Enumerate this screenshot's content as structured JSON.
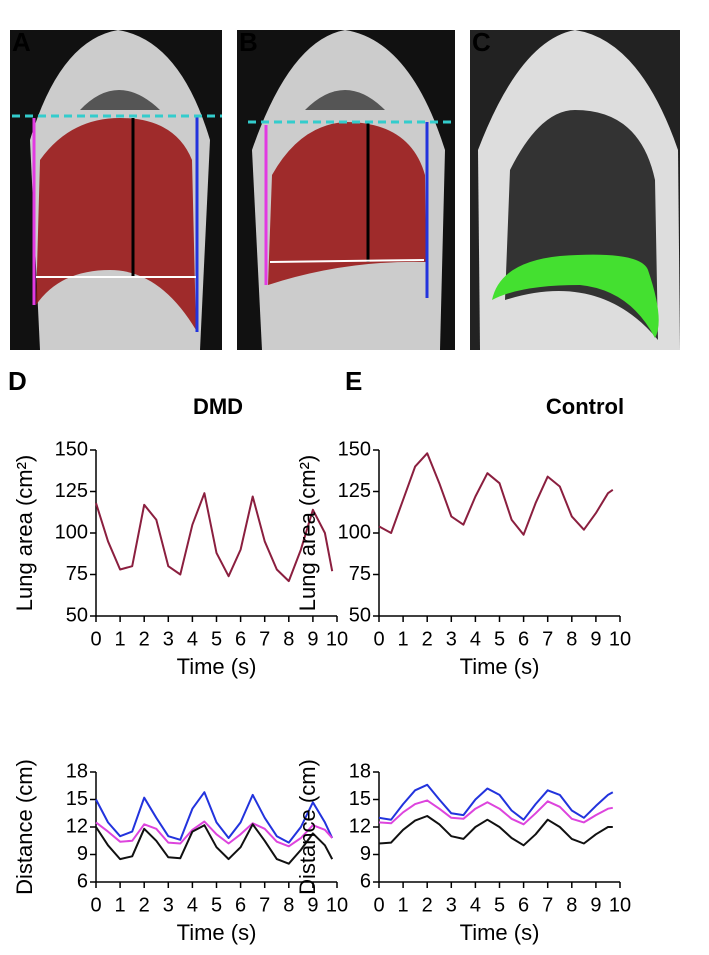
{
  "image_panels": [
    {
      "label": "A"
    },
    {
      "label": "B"
    },
    {
      "label": "C"
    }
  ],
  "chart_data": [
    {
      "type": "line",
      "panel": "D",
      "title": "DMD",
      "xlabel": "Time (s)",
      "ylabel": "Lung area (cm²)",
      "x": [
        0,
        0.5,
        1,
        1.5,
        2,
        2.5,
        3,
        3.5,
        4,
        4.5,
        5,
        5.5,
        6,
        6.5,
        7,
        7.5,
        8,
        8.5,
        9,
        9.5,
        9.8
      ],
      "series": [
        {
          "color": "#8b1f3f",
          "values": [
            118,
            95,
            78,
            80,
            117,
            108,
            80,
            75,
            105,
            124,
            88,
            74,
            90,
            122,
            95,
            78,
            71,
            90,
            114,
            100,
            77
          ]
        }
      ],
      "xlim": [
        0,
        10
      ],
      "xticks": [
        0,
        1,
        2,
        3,
        4,
        5,
        6,
        7,
        8,
        9,
        10
      ],
      "ylim": [
        50,
        150
      ],
      "yticks": [
        50,
        75,
        100,
        125,
        150
      ]
    },
    {
      "type": "line",
      "panel": "E",
      "title": "Control",
      "xlabel": "Time (s)",
      "ylabel": "Lung area (cm²)",
      "x": [
        0,
        0.5,
        1,
        1.5,
        2,
        2.5,
        3,
        3.5,
        4,
        4.5,
        5,
        5.5,
        6,
        6.5,
        7,
        7.5,
        8,
        8.5,
        9,
        9.5,
        9.7
      ],
      "series": [
        {
          "color": "#8b1f3f",
          "values": [
            104,
            100,
            120,
            140,
            148,
            130,
            110,
            105,
            122,
            136,
            130,
            108,
            99,
            118,
            134,
            128,
            110,
            102,
            112,
            124,
            126
          ]
        }
      ],
      "xlim": [
        0,
        10
      ],
      "xticks": [
        0,
        1,
        2,
        3,
        4,
        5,
        6,
        7,
        8,
        9,
        10
      ],
      "ylim": [
        50,
        150
      ],
      "yticks": [
        50,
        75,
        100,
        125,
        150
      ]
    },
    {
      "type": "line",
      "xlabel": "Time (s)",
      "ylabel": "Distance  (cm)",
      "x": [
        0,
        0.5,
        1,
        1.5,
        2,
        2.5,
        3,
        3.5,
        4,
        4.5,
        5,
        5.5,
        6,
        6.5,
        7,
        7.5,
        8,
        8.5,
        9,
        9.5,
        9.8
      ],
      "series": [
        {
          "color": "#2233dd",
          "values": [
            15,
            12.5,
            11,
            11.5,
            15.2,
            13,
            11,
            10.6,
            14,
            15.8,
            12.5,
            10.8,
            12.5,
            15.5,
            13,
            11,
            10.3,
            12,
            14.7,
            12.5,
            10.8
          ]
        },
        {
          "color": "#dd44dd",
          "values": [
            12.5,
            11.5,
            10.4,
            10.5,
            12.3,
            11.8,
            10.3,
            10.2,
            11.7,
            12.6,
            11.2,
            10.2,
            11.2,
            12.4,
            11.8,
            10.4,
            9.9,
            10.8,
            12.2,
            11.7,
            10.8
          ]
        },
        {
          "color": "#111111",
          "values": [
            12,
            10,
            8.5,
            8.8,
            11.8,
            10.5,
            8.7,
            8.6,
            11.5,
            12.2,
            9.8,
            8.5,
            9.8,
            12.3,
            10.5,
            8.5,
            8,
            9.5,
            11.3,
            10,
            8.5
          ]
        }
      ],
      "xlim": [
        0,
        10
      ],
      "xticks": [
        0,
        1,
        2,
        3,
        4,
        5,
        6,
        7,
        8,
        9,
        10
      ],
      "ylim": [
        6,
        18
      ],
      "yticks": [
        6,
        9,
        12,
        15,
        18
      ]
    },
    {
      "type": "line",
      "xlabel": "Time (s)",
      "ylabel": "Distance  (cm)",
      "x": [
        0,
        0.5,
        1,
        1.5,
        2,
        2.5,
        3,
        3.5,
        4,
        4.5,
        5,
        5.5,
        6,
        6.5,
        7,
        7.5,
        8,
        8.5,
        9,
        9.5,
        9.7
      ],
      "series": [
        {
          "color": "#2233dd",
          "values": [
            13,
            12.8,
            14.5,
            16,
            16.6,
            15,
            13.5,
            13.3,
            15,
            16.2,
            15.5,
            13.8,
            12.8,
            14.5,
            16,
            15.5,
            13.8,
            13,
            14.3,
            15.5,
            15.8
          ]
        },
        {
          "color": "#dd44dd",
          "values": [
            12.5,
            12.4,
            13.6,
            14.5,
            14.9,
            14,
            13,
            12.9,
            14,
            14.7,
            14,
            12.9,
            12.3,
            13.5,
            14.8,
            14.2,
            12.9,
            12.5,
            13.3,
            14,
            14.1
          ]
        },
        {
          "color": "#111111",
          "values": [
            10.2,
            10.3,
            11.7,
            12.7,
            13.2,
            12.3,
            11,
            10.7,
            12,
            12.8,
            12,
            10.8,
            10,
            11.2,
            12.8,
            12,
            10.7,
            10.2,
            11.2,
            12,
            12
          ]
        }
      ],
      "xlim": [
        0,
        10
      ],
      "xticks": [
        0,
        1,
        2,
        3,
        4,
        5,
        6,
        7,
        8,
        9,
        10
      ],
      "ylim": [
        6,
        18
      ],
      "yticks": [
        6,
        9,
        12,
        15,
        18
      ]
    }
  ]
}
